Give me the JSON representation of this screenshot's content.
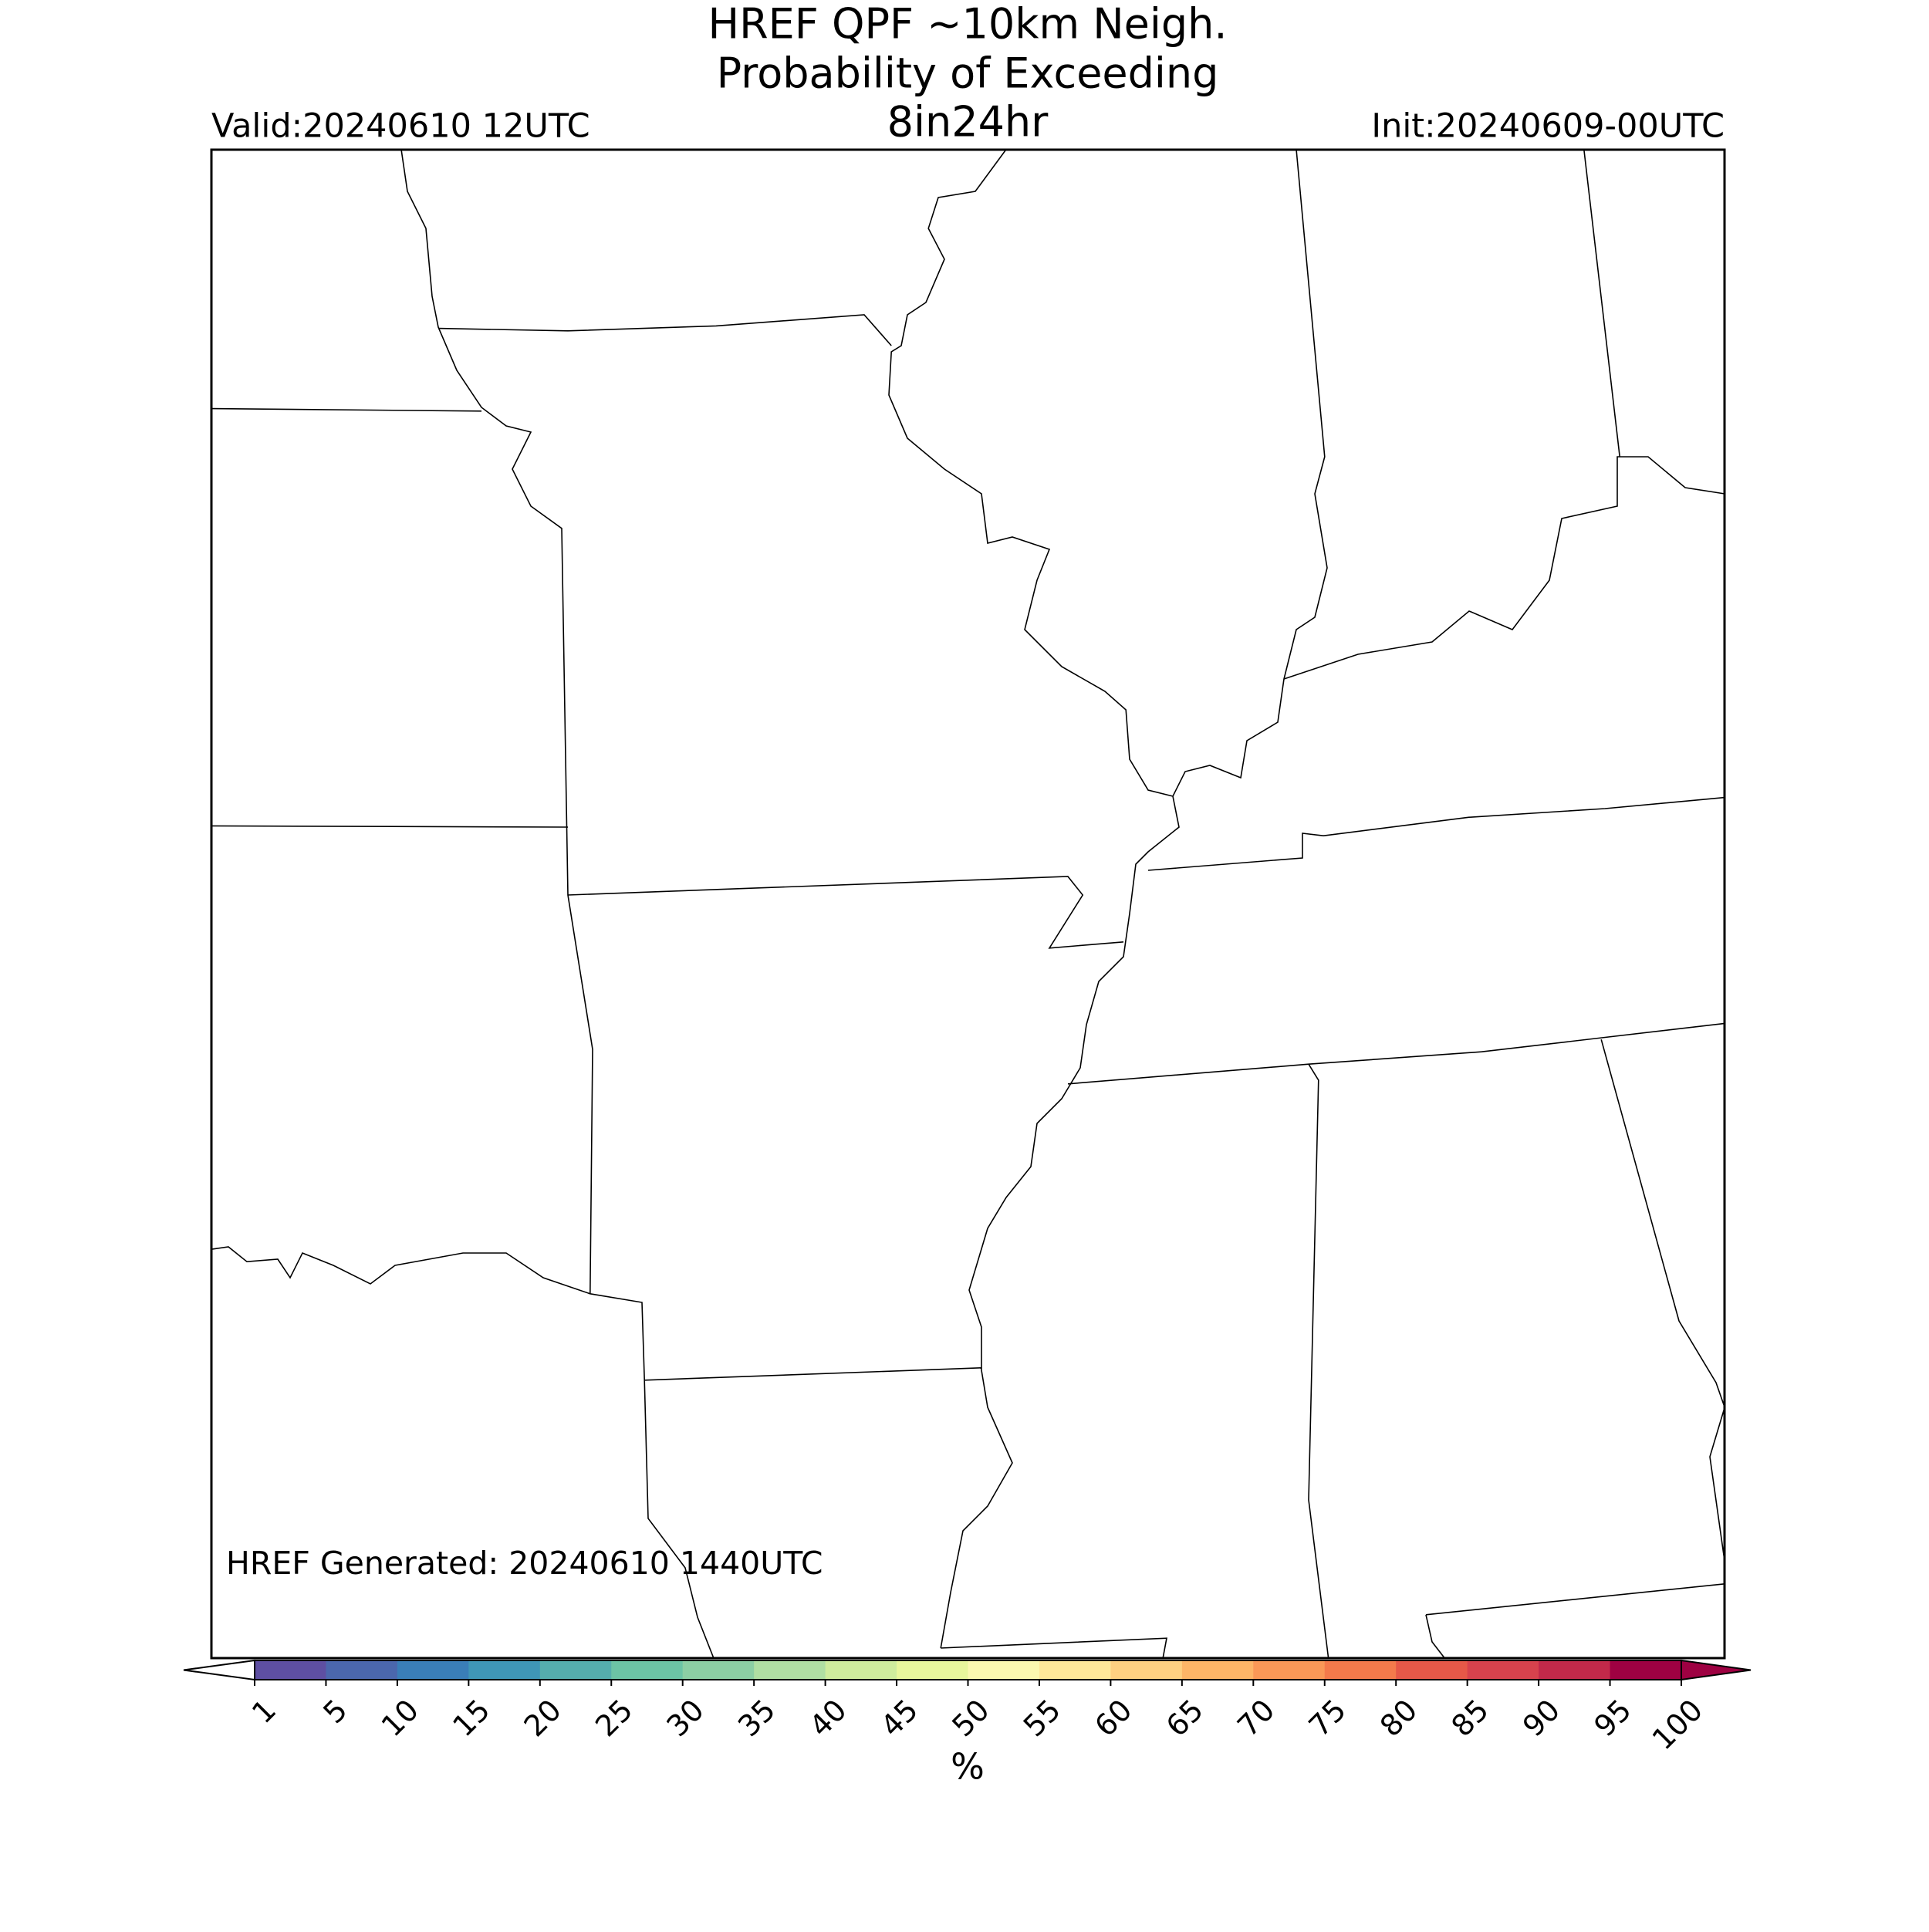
{
  "title": [
    "HREF QPF ~10km Neigh.",
    "Probability of Exceeding",
    "8in24hr"
  ],
  "valid": "Valid:20240610 12UTC",
  "init": "Init:20240609-00UTC",
  "generated": "HREF Generated: 20240610 1440UTC",
  "colorbar": {
    "label": "%",
    "boundaries": [
      1,
      5,
      10,
      15,
      20,
      25,
      30,
      35,
      40,
      45,
      50,
      55,
      60,
      65,
      70,
      75,
      80,
      85,
      90,
      95,
      100
    ],
    "colors": [
      "#5e4fa2",
      "#4b67ad",
      "#3a7eb8",
      "#3f96b7",
      "#55aead",
      "#6cc4a5",
      "#8ccfa4",
      "#b0dfa3",
      "#cfec9d",
      "#e8f69c",
      "#fbf8b0",
      "#fee89a",
      "#fed081",
      "#fdb567",
      "#fa9857",
      "#f47a4b",
      "#e65848",
      "#d7424d",
      "#c2294a",
      "#9e0142"
    ],
    "under_color": "#ffffff",
    "over_color": "#9e0142"
  }
}
